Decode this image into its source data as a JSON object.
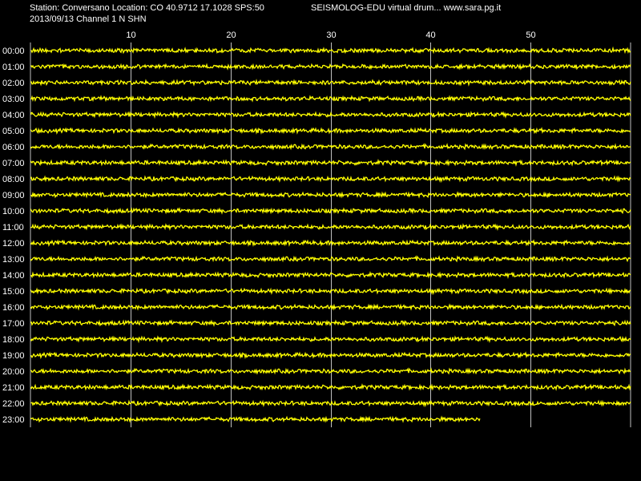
{
  "header": {
    "station_info": "Station: Conversano Location: CO 40.9712 17.1028 SPS:50",
    "program_info": "SEISMOLOG-EDU virtual drum... www.sara.pg.it",
    "date_channel": "2013/09/13  Channel 1 N SHN"
  },
  "chart_data": {
    "type": "line",
    "title": "",
    "xlabel": "",
    "ylabel": "",
    "x_unit": "minutes",
    "xlim": [
      0,
      60
    ],
    "x_ticks": [
      10,
      20,
      30,
      40,
      50
    ],
    "x_tick_labels": [
      "10",
      "20",
      "30",
      "40",
      "50"
    ],
    "grid": true,
    "trace_color": "#ffff00",
    "grid_color": "#c0c0c0",
    "background_color": "#000000",
    "rows": [
      {
        "hour": "00:00",
        "end_minute": 60
      },
      {
        "hour": "01:00",
        "end_minute": 60
      },
      {
        "hour": "02:00",
        "end_minute": 60
      },
      {
        "hour": "03:00",
        "end_minute": 60
      },
      {
        "hour": "04:00",
        "end_minute": 60
      },
      {
        "hour": "05:00",
        "end_minute": 60
      },
      {
        "hour": "06:00",
        "end_minute": 60
      },
      {
        "hour": "07:00",
        "end_minute": 60
      },
      {
        "hour": "08:00",
        "end_minute": 60
      },
      {
        "hour": "09:00",
        "end_minute": 60
      },
      {
        "hour": "10:00",
        "end_minute": 60
      },
      {
        "hour": "11:00",
        "end_minute": 60
      },
      {
        "hour": "12:00",
        "end_minute": 60
      },
      {
        "hour": "13:00",
        "end_minute": 60
      },
      {
        "hour": "14:00",
        "end_minute": 60
      },
      {
        "hour": "15:00",
        "end_minute": 60
      },
      {
        "hour": "16:00",
        "end_minute": 60
      },
      {
        "hour": "17:00",
        "end_minute": 60
      },
      {
        "hour": "18:00",
        "end_minute": 60
      },
      {
        "hour": "19:00",
        "end_minute": 60
      },
      {
        "hour": "20:00",
        "end_minute": 60
      },
      {
        "hour": "21:00",
        "end_minute": 60
      },
      {
        "hour": "22:00",
        "end_minute": 60
      },
      {
        "hour": "23:00",
        "end_minute": 45
      }
    ]
  }
}
